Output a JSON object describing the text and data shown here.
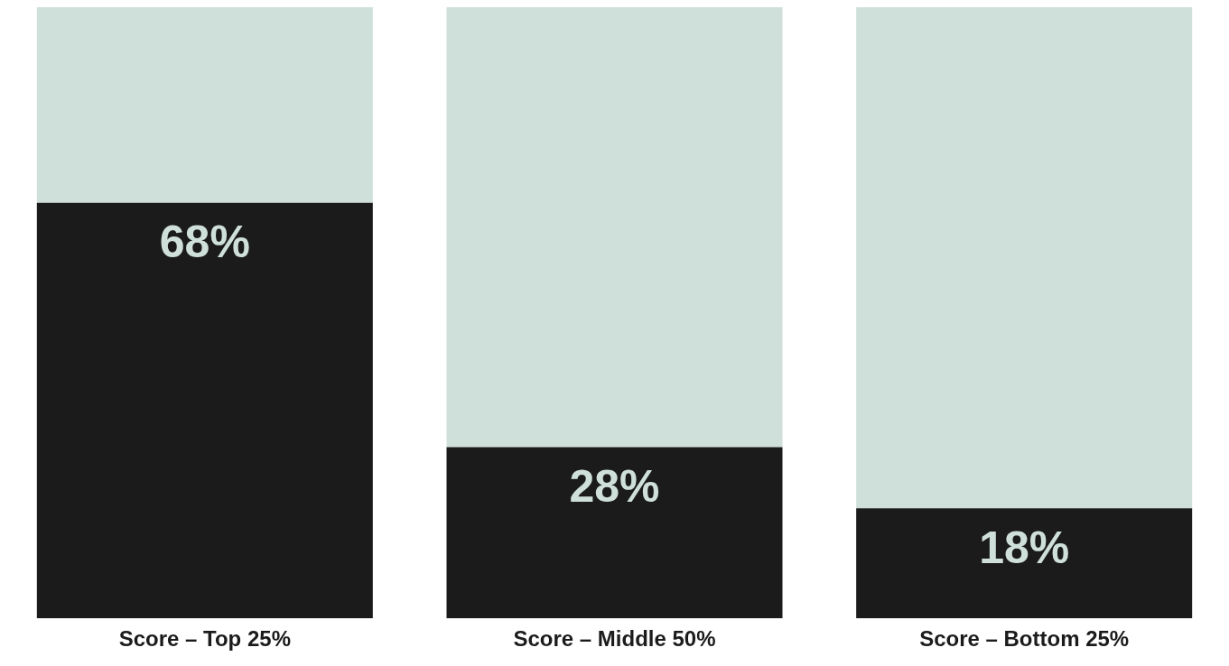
{
  "chart_data": {
    "type": "bar",
    "stacked": true,
    "categories": [
      "Score – Top 25%",
      "Score – Middle 50%",
      "Score – Bottom 25%"
    ],
    "series": [
      {
        "color": "#1b1b1b",
        "values": [
          68,
          28,
          18
        ],
        "value_labels": [
          "68%",
          "28%",
          "18%"
        ]
      },
      {
        "color": "#cfe0da",
        "values": [
          32,
          72,
          82
        ],
        "value_labels": [
          null,
          null,
          null
        ]
      }
    ],
    "ylim": [
      0,
      100
    ],
    "tick_labels": "x",
    "grid": false,
    "legend": false
  }
}
